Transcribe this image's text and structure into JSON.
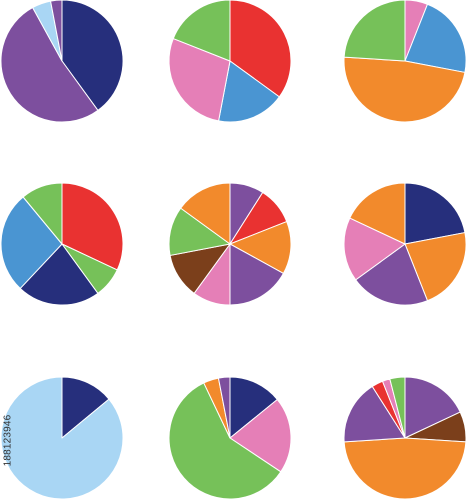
{
  "colors": {
    "navy": "#262f7c",
    "purple": "#7d4f9e",
    "lightblue": "#a9d6f4",
    "red": "#e93231",
    "blue": "#4a95d2",
    "pink": "#e57fb7",
    "green": "#76c159",
    "orange": "#f28a2c",
    "brown": "#7b3f1b",
    "separator": "#ffffff"
  },
  "chart_data": [
    {
      "type": "pie",
      "name": "pie-1",
      "start_angle_deg": 0,
      "direction": "clockwise",
      "slices": [
        {
          "value": 40,
          "color": "navy"
        },
        {
          "value": 52,
          "color": "purple"
        },
        {
          "value": 5,
          "color": "lightblue"
        },
        {
          "value": 3,
          "color": "purple"
        }
      ]
    },
    {
      "type": "pie",
      "name": "pie-2",
      "start_angle_deg": 0,
      "direction": "clockwise",
      "slices": [
        {
          "value": 35,
          "color": "red"
        },
        {
          "value": 18,
          "color": "blue"
        },
        {
          "value": 28,
          "color": "pink"
        },
        {
          "value": 19,
          "color": "green"
        }
      ]
    },
    {
      "type": "pie",
      "name": "pie-3",
      "start_angle_deg": 0,
      "direction": "clockwise",
      "slices": [
        {
          "value": 6,
          "color": "pink"
        },
        {
          "value": 22,
          "color": "blue"
        },
        {
          "value": 48,
          "color": "orange"
        },
        {
          "value": 24,
          "color": "green"
        }
      ]
    },
    {
      "type": "pie",
      "name": "pie-4",
      "start_angle_deg": 0,
      "direction": "clockwise",
      "slices": [
        {
          "value": 32,
          "color": "red"
        },
        {
          "value": 8,
          "color": "green"
        },
        {
          "value": 22,
          "color": "navy"
        },
        {
          "value": 27,
          "color": "blue"
        },
        {
          "value": 11,
          "color": "green"
        }
      ]
    },
    {
      "type": "pie",
      "name": "pie-5",
      "start_angle_deg": 0,
      "direction": "clockwise",
      "slices": [
        {
          "value": 9,
          "color": "purple"
        },
        {
          "value": 10,
          "color": "red"
        },
        {
          "value": 14,
          "color": "orange"
        },
        {
          "value": 17,
          "color": "purple"
        },
        {
          "value": 10,
          "color": "pink"
        },
        {
          "value": 12,
          "color": "brown"
        },
        {
          "value": 13,
          "color": "green"
        },
        {
          "value": 15,
          "color": "orange"
        }
      ]
    },
    {
      "type": "pie",
      "name": "pie-6",
      "start_angle_deg": 0,
      "direction": "clockwise",
      "slices": [
        {
          "value": 22,
          "color": "navy"
        },
        {
          "value": 22,
          "color": "orange"
        },
        {
          "value": 21,
          "color": "purple"
        },
        {
          "value": 17,
          "color": "pink"
        },
        {
          "value": 18,
          "color": "orange"
        }
      ]
    },
    {
      "type": "pie",
      "name": "pie-7",
      "start_angle_deg": 0,
      "direction": "clockwise",
      "slices": [
        {
          "value": 14,
          "color": "navy"
        },
        {
          "value": 86,
          "color": "lightblue"
        }
      ]
    },
    {
      "type": "pie",
      "name": "pie-8",
      "start_angle_deg": 0,
      "direction": "clockwise",
      "slices": [
        {
          "value": 14,
          "color": "navy"
        },
        {
          "value": 20,
          "color": "pink"
        },
        {
          "value": 58,
          "color": "green"
        },
        {
          "value": 4,
          "color": "orange"
        },
        {
          "value": 3,
          "color": "purple"
        }
      ]
    },
    {
      "type": "pie",
      "name": "pie-9",
      "start_angle_deg": 0,
      "direction": "clockwise",
      "slices": [
        {
          "value": 18,
          "color": "purple"
        },
        {
          "value": 8,
          "color": "brown"
        },
        {
          "value": 48,
          "color": "orange"
        },
        {
          "value": 17,
          "color": "purple"
        },
        {
          "value": 3,
          "color": "red"
        },
        {
          "value": 2,
          "color": "pink"
        },
        {
          "value": 4,
          "color": "green"
        }
      ]
    }
  ],
  "stock_id": "188123946"
}
